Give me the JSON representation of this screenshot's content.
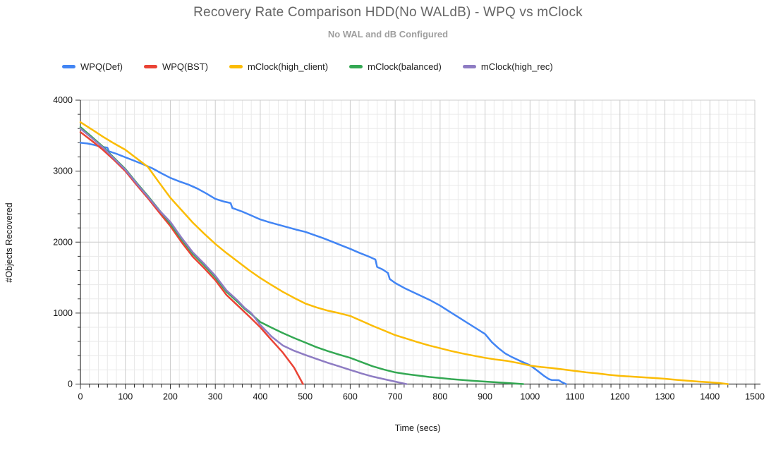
{
  "chart": {
    "title": "Recovery Rate Comparison HDD(No WALdB) - WPQ vs mClock",
    "subtitle": "No WAL and dB Configured",
    "xlabel": "Time (secs)",
    "ylabel": "#Objects Recovered"
  },
  "chart_data": {
    "type": "line",
    "title": "Recovery Rate Comparison HDD(No WALdB) - WPQ vs mClock",
    "subtitle": "No WAL and dB Configured",
    "xlabel": "Time (secs)",
    "ylabel": "#Objects Recovered",
    "xlim": [
      0,
      1500
    ],
    "ylim": [
      0,
      4000
    ],
    "x_major_step": 100,
    "x_minor_step": 20,
    "y_major_step": 1000,
    "y_minor_step": 200,
    "grid": true,
    "legend_position": "top-left",
    "colors": {
      "grid_minor": "#e9e9e9",
      "grid_major": "#cccccc",
      "axis": "#333333"
    },
    "series": [
      {
        "name": "WPQ(Def)",
        "color": "#4285F4",
        "points": [
          [
            0,
            3400
          ],
          [
            15,
            3390
          ],
          [
            30,
            3370
          ],
          [
            45,
            3345
          ],
          [
            60,
            3330
          ],
          [
            63,
            3280
          ],
          [
            80,
            3245
          ],
          [
            100,
            3195
          ],
          [
            120,
            3145
          ],
          [
            140,
            3095
          ],
          [
            160,
            3040
          ],
          [
            180,
            2970
          ],
          [
            200,
            2905
          ],
          [
            220,
            2855
          ],
          [
            240,
            2810
          ],
          [
            260,
            2755
          ],
          [
            280,
            2685
          ],
          [
            300,
            2610
          ],
          [
            320,
            2570
          ],
          [
            334,
            2550
          ],
          [
            338,
            2480
          ],
          [
            360,
            2430
          ],
          [
            380,
            2375
          ],
          [
            400,
            2320
          ],
          [
            420,
            2280
          ],
          [
            440,
            2245
          ],
          [
            460,
            2210
          ],
          [
            480,
            2175
          ],
          [
            500,
            2145
          ],
          [
            520,
            2100
          ],
          [
            540,
            2055
          ],
          [
            560,
            2005
          ],
          [
            580,
            1955
          ],
          [
            600,
            1905
          ],
          [
            620,
            1850
          ],
          [
            640,
            1800
          ],
          [
            656,
            1755
          ],
          [
            660,
            1650
          ],
          [
            672,
            1615
          ],
          [
            684,
            1565
          ],
          [
            688,
            1480
          ],
          [
            700,
            1425
          ],
          [
            720,
            1355
          ],
          [
            740,
            1295
          ],
          [
            760,
            1235
          ],
          [
            780,
            1175
          ],
          [
            800,
            1105
          ],
          [
            820,
            1025
          ],
          [
            840,
            945
          ],
          [
            860,
            865
          ],
          [
            880,
            785
          ],
          [
            900,
            705
          ],
          [
            915,
            590
          ],
          [
            930,
            505
          ],
          [
            945,
            430
          ],
          [
            960,
            380
          ],
          [
            980,
            320
          ],
          [
            1000,
            265
          ],
          [
            1015,
            195
          ],
          [
            1030,
            120
          ],
          [
            1042,
            70
          ],
          [
            1048,
            58
          ],
          [
            1064,
            55
          ],
          [
            1070,
            30
          ],
          [
            1080,
            0
          ]
        ]
      },
      {
        "name": "WPQ(BST)",
        "color": "#EA4335",
        "points": [
          [
            0,
            3550
          ],
          [
            25,
            3430
          ],
          [
            50,
            3300
          ],
          [
            75,
            3155
          ],
          [
            100,
            3000
          ],
          [
            125,
            2805
          ],
          [
            150,
            2620
          ],
          [
            175,
            2420
          ],
          [
            200,
            2225
          ],
          [
            225,
            2000
          ],
          [
            250,
            1795
          ],
          [
            275,
            1635
          ],
          [
            300,
            1465
          ],
          [
            325,
            1255
          ],
          [
            350,
            1105
          ],
          [
            375,
            955
          ],
          [
            400,
            800
          ],
          [
            425,
            620
          ],
          [
            450,
            445
          ],
          [
            475,
            235
          ],
          [
            495,
            0
          ]
        ]
      },
      {
        "name": "mClock(high_client)",
        "color": "#FBBC04",
        "points": [
          [
            0,
            3690
          ],
          [
            25,
            3590
          ],
          [
            50,
            3485
          ],
          [
            75,
            3390
          ],
          [
            100,
            3300
          ],
          [
            125,
            3180
          ],
          [
            150,
            3060
          ],
          [
            175,
            2840
          ],
          [
            200,
            2625
          ],
          [
            225,
            2450
          ],
          [
            250,
            2275
          ],
          [
            275,
            2120
          ],
          [
            300,
            1975
          ],
          [
            325,
            1845
          ],
          [
            350,
            1725
          ],
          [
            375,
            1605
          ],
          [
            400,
            1495
          ],
          [
            425,
            1395
          ],
          [
            450,
            1300
          ],
          [
            475,
            1215
          ],
          [
            500,
            1135
          ],
          [
            525,
            1080
          ],
          [
            550,
            1035
          ],
          [
            575,
            1000
          ],
          [
            600,
            960
          ],
          [
            625,
            890
          ],
          [
            650,
            820
          ],
          [
            675,
            755
          ],
          [
            700,
            690
          ],
          [
            725,
            640
          ],
          [
            750,
            590
          ],
          [
            775,
            545
          ],
          [
            800,
            505
          ],
          [
            825,
            465
          ],
          [
            850,
            430
          ],
          [
            875,
            400
          ],
          [
            900,
            370
          ],
          [
            925,
            345
          ],
          [
            950,
            325
          ],
          [
            975,
            295
          ],
          [
            1000,
            260
          ],
          [
            1025,
            240
          ],
          [
            1050,
            225
          ],
          [
            1075,
            205
          ],
          [
            1100,
            185
          ],
          [
            1125,
            165
          ],
          [
            1150,
            150
          ],
          [
            1175,
            130
          ],
          [
            1200,
            115
          ],
          [
            1225,
            105
          ],
          [
            1250,
            95
          ],
          [
            1275,
            85
          ],
          [
            1300,
            75
          ],
          [
            1325,
            60
          ],
          [
            1350,
            48
          ],
          [
            1375,
            35
          ],
          [
            1400,
            25
          ],
          [
            1420,
            15
          ],
          [
            1440,
            0
          ]
        ]
      },
      {
        "name": "mClock(balanced)",
        "color": "#34A853",
        "points": [
          [
            0,
            3620
          ],
          [
            25,
            3485
          ],
          [
            50,
            3345
          ],
          [
            75,
            3185
          ],
          [
            100,
            3030
          ],
          [
            125,
            2835
          ],
          [
            150,
            2650
          ],
          [
            175,
            2455
          ],
          [
            200,
            2260
          ],
          [
            225,
            2040
          ],
          [
            250,
            1835
          ],
          [
            275,
            1675
          ],
          [
            300,
            1505
          ],
          [
            325,
            1300
          ],
          [
            350,
            1155
          ],
          [
            365,
            1060
          ],
          [
            380,
            985
          ],
          [
            400,
            875
          ],
          [
            425,
            795
          ],
          [
            450,
            720
          ],
          [
            475,
            650
          ],
          [
            500,
            585
          ],
          [
            525,
            520
          ],
          [
            550,
            465
          ],
          [
            575,
            415
          ],
          [
            600,
            370
          ],
          [
            625,
            310
          ],
          [
            650,
            250
          ],
          [
            675,
            205
          ],
          [
            700,
            165
          ],
          [
            725,
            140
          ],
          [
            750,
            120
          ],
          [
            775,
            100
          ],
          [
            800,
            85
          ],
          [
            825,
            70
          ],
          [
            850,
            58
          ],
          [
            875,
            45
          ],
          [
            900,
            35
          ],
          [
            925,
            25
          ],
          [
            950,
            15
          ],
          [
            985,
            0
          ]
        ]
      },
      {
        "name": "mClock(high_rec)",
        "color": "#8E7CC3",
        "points": [
          [
            0,
            3600
          ],
          [
            25,
            3470
          ],
          [
            50,
            3335
          ],
          [
            75,
            3175
          ],
          [
            100,
            3020
          ],
          [
            125,
            2825
          ],
          [
            150,
            2640
          ],
          [
            175,
            2450
          ],
          [
            200,
            2285
          ],
          [
            225,
            2060
          ],
          [
            250,
            1855
          ],
          [
            275,
            1695
          ],
          [
            300,
            1525
          ],
          [
            325,
            1320
          ],
          [
            350,
            1175
          ],
          [
            365,
            1075
          ],
          [
            380,
            1000
          ],
          [
            400,
            835
          ],
          [
            425,
            670
          ],
          [
            450,
            545
          ],
          [
            475,
            470
          ],
          [
            500,
            410
          ],
          [
            525,
            355
          ],
          [
            550,
            300
          ],
          [
            575,
            250
          ],
          [
            600,
            200
          ],
          [
            625,
            150
          ],
          [
            650,
            105
          ],
          [
            675,
            70
          ],
          [
            700,
            35
          ],
          [
            712,
            18
          ],
          [
            725,
            0
          ]
        ]
      }
    ]
  }
}
